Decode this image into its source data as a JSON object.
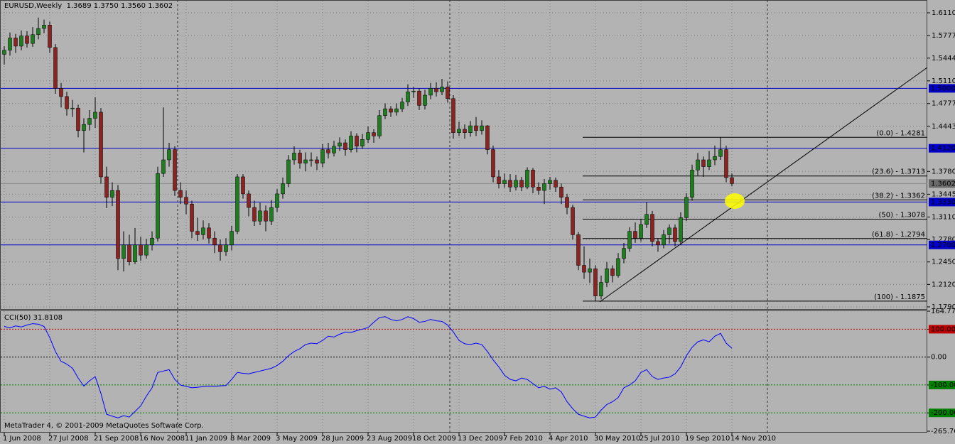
{
  "chart_data": [
    {
      "type": "candlestick",
      "title": "EURUSD,Weekly",
      "quote_labels": [
        "1.3689",
        "1.3750",
        "1.3560",
        "1.3602"
      ],
      "categories": [
        "1 Jun 2008",
        null,
        null,
        null,
        null,
        null,
        null,
        null,
        "27 Jul 2008",
        null,
        null,
        null,
        null,
        null,
        null,
        null,
        "21 Sep 2008",
        null,
        null,
        null,
        null,
        null,
        null,
        null,
        "16 Nov 2008",
        null,
        null,
        null,
        null,
        null,
        null,
        null,
        "11 Jan 2009",
        null,
        null,
        null,
        null,
        null,
        null,
        null,
        "8 Mar 2009",
        null,
        null,
        null,
        null,
        null,
        null,
        null,
        "3 May 2009",
        null,
        null,
        null,
        null,
        null,
        null,
        null,
        "28 Jun 2009",
        null,
        null,
        null,
        null,
        null,
        null,
        null,
        "23 Aug 2009",
        null,
        null,
        null,
        null,
        null,
        null,
        null,
        "18 Oct 2009",
        null,
        null,
        null,
        null,
        null,
        null,
        null,
        "13 Dec 2009",
        null,
        null,
        null,
        null,
        null,
        null,
        null,
        "7 Feb 2010",
        null,
        null,
        null,
        null,
        null,
        null,
        null,
        "4 Apr 2010",
        null,
        null,
        null,
        null,
        null,
        null,
        null,
        "30 May 2010",
        null,
        null,
        null,
        null,
        null,
        null,
        null,
        "25 Jul 2010",
        null,
        null,
        null,
        null,
        null,
        null,
        null,
        "19 Sep 2010",
        null,
        null,
        null,
        null,
        null,
        null,
        null,
        "14 Nov 2010"
      ],
      "ohlc": [
        [
          1.55,
          1.562,
          1.535,
          1.556
        ],
        [
          1.556,
          1.582,
          1.548,
          1.574
        ],
        [
          1.574,
          1.58,
          1.552,
          1.562
        ],
        [
          1.562,
          1.585,
          1.556,
          1.577
        ],
        [
          1.577,
          1.584,
          1.56,
          1.566
        ],
        [
          1.566,
          1.59,
          1.561,
          1.579
        ],
        [
          1.579,
          1.604,
          1.572,
          1.588
        ],
        [
          1.588,
          1.601,
          1.581,
          1.593
        ],
        [
          1.593,
          1.598,
          1.552,
          1.56
        ],
        [
          1.56,
          1.565,
          1.492,
          1.5
        ],
        [
          1.5,
          1.508,
          1.472,
          1.488
        ],
        [
          1.488,
          1.495,
          1.46,
          1.47
        ],
        [
          1.47,
          1.483,
          1.458,
          1.471
        ],
        [
          1.471,
          1.476,
          1.428,
          1.438
        ],
        [
          1.438,
          1.456,
          1.406,
          1.447
        ],
        [
          1.447,
          1.468,
          1.438,
          1.456
        ],
        [
          1.456,
          1.487,
          1.442,
          1.465
        ],
        [
          1.465,
          1.471,
          1.36,
          1.37
        ],
        [
          1.37,
          1.385,
          1.324,
          1.34
        ],
        [
          1.34,
          1.362,
          1.327,
          1.35
        ],
        [
          1.35,
          1.358,
          1.233,
          1.25
        ],
        [
          1.25,
          1.29,
          1.231,
          1.27
        ],
        [
          1.27,
          1.285,
          1.24,
          1.245
        ],
        [
          1.245,
          1.295,
          1.242,
          1.27
        ],
        [
          1.27,
          1.282,
          1.247,
          1.255
        ],
        [
          1.255,
          1.279,
          1.25,
          1.27
        ],
        [
          1.27,
          1.29,
          1.262,
          1.28
        ],
        [
          1.28,
          1.385,
          1.275,
          1.375
        ],
        [
          1.375,
          1.472,
          1.37,
          1.395
        ],
        [
          1.395,
          1.42,
          1.385,
          1.41
        ],
        [
          1.41,
          1.415,
          1.342,
          1.35
        ],
        [
          1.35,
          1.362,
          1.33,
          1.34
        ],
        [
          1.34,
          1.35,
          1.315,
          1.33
        ],
        [
          1.33,
          1.335,
          1.28,
          1.29
        ],
        [
          1.29,
          1.31,
          1.276,
          1.285
        ],
        [
          1.285,
          1.306,
          1.278,
          1.295
        ],
        [
          1.295,
          1.302,
          1.272,
          1.28
        ],
        [
          1.28,
          1.29,
          1.258,
          1.27
        ],
        [
          1.27,
          1.278,
          1.247,
          1.26
        ],
        [
          1.26,
          1.28,
          1.254,
          1.27
        ],
        [
          1.27,
          1.298,
          1.262,
          1.29
        ],
        [
          1.29,
          1.374,
          1.286,
          1.37
        ],
        [
          1.37,
          1.374,
          1.338,
          1.345
        ],
        [
          1.345,
          1.35,
          1.312,
          1.325
        ],
        [
          1.325,
          1.335,
          1.298,
          1.305
        ],
        [
          1.305,
          1.332,
          1.299,
          1.32
        ],
        [
          1.32,
          1.328,
          1.29,
          1.305
        ],
        [
          1.305,
          1.336,
          1.299,
          1.325
        ],
        [
          1.325,
          1.352,
          1.318,
          1.345
        ],
        [
          1.345,
          1.369,
          1.338,
          1.36
        ],
        [
          1.36,
          1.402,
          1.355,
          1.395
        ],
        [
          1.395,
          1.415,
          1.388,
          1.405
        ],
        [
          1.405,
          1.41,
          1.382,
          1.39
        ],
        [
          1.39,
          1.406,
          1.378,
          1.395
        ],
        [
          1.395,
          1.406,
          1.385,
          1.395
        ],
        [
          1.395,
          1.4,
          1.38,
          1.39
        ],
        [
          1.39,
          1.418,
          1.384,
          1.41
        ],
        [
          1.41,
          1.42,
          1.397,
          1.405
        ],
        [
          1.405,
          1.423,
          1.4,
          1.415
        ],
        [
          1.415,
          1.428,
          1.408,
          1.42
        ],
        [
          1.42,
          1.425,
          1.401,
          1.41
        ],
        [
          1.41,
          1.437,
          1.406,
          1.43
        ],
        [
          1.43,
          1.434,
          1.406,
          1.415
        ],
        [
          1.415,
          1.433,
          1.411,
          1.425
        ],
        [
          1.425,
          1.444,
          1.42,
          1.435
        ],
        [
          1.435,
          1.44,
          1.42,
          1.43
        ],
        [
          1.43,
          1.468,
          1.426,
          1.46
        ],
        [
          1.46,
          1.478,
          1.455,
          1.47
        ],
        [
          1.47,
          1.474,
          1.458,
          1.465
        ],
        [
          1.465,
          1.478,
          1.46,
          1.47
        ],
        [
          1.47,
          1.486,
          1.465,
          1.48
        ],
        [
          1.48,
          1.506,
          1.474,
          1.495
        ],
        [
          1.495,
          1.502,
          1.486,
          1.496
        ],
        [
          1.496,
          1.5,
          1.468,
          1.475
        ],
        [
          1.475,
          1.498,
          1.469,
          1.49
        ],
        [
          1.49,
          1.508,
          1.484,
          1.5
        ],
        [
          1.5,
          1.509,
          1.488,
          1.495
        ],
        [
          1.495,
          1.514,
          1.49,
          1.502
        ],
        [
          1.502,
          1.51,
          1.479,
          1.485
        ],
        [
          1.485,
          1.49,
          1.426,
          1.435
        ],
        [
          1.435,
          1.451,
          1.43,
          1.44
        ],
        [
          1.44,
          1.447,
          1.426,
          1.435
        ],
        [
          1.435,
          1.452,
          1.429,
          1.445
        ],
        [
          1.445,
          1.458,
          1.43,
          1.438
        ],
        [
          1.438,
          1.453,
          1.432,
          1.445
        ],
        [
          1.445,
          1.446,
          1.403,
          1.41
        ],
        [
          1.41,
          1.416,
          1.362,
          1.37
        ],
        [
          1.37,
          1.38,
          1.353,
          1.36
        ],
        [
          1.36,
          1.375,
          1.354,
          1.365
        ],
        [
          1.365,
          1.374,
          1.348,
          1.355
        ],
        [
          1.355,
          1.373,
          1.35,
          1.365
        ],
        [
          1.365,
          1.37,
          1.349,
          1.355
        ],
        [
          1.355,
          1.384,
          1.352,
          1.38
        ],
        [
          1.38,
          1.383,
          1.346,
          1.355
        ],
        [
          1.355,
          1.362,
          1.344,
          1.35
        ],
        [
          1.35,
          1.367,
          1.33,
          1.36
        ],
        [
          1.36,
          1.37,
          1.351,
          1.365
        ],
        [
          1.365,
          1.369,
          1.348,
          1.355
        ],
        [
          1.355,
          1.36,
          1.33,
          1.34
        ],
        [
          1.34,
          1.345,
          1.315,
          1.325
        ],
        [
          1.325,
          1.329,
          1.278,
          1.285
        ],
        [
          1.285,
          1.289,
          1.233,
          1.24
        ],
        [
          1.24,
          1.268,
          1.22,
          1.23
        ],
        [
          1.23,
          1.25,
          1.214,
          1.235
        ],
        [
          1.235,
          1.24,
          1.1875,
          1.195
        ],
        [
          1.195,
          1.225,
          1.19,
          1.215
        ],
        [
          1.215,
          1.245,
          1.208,
          1.235
        ],
        [
          1.235,
          1.24,
          1.215,
          1.225
        ],
        [
          1.225,
          1.258,
          1.222,
          1.25
        ],
        [
          1.25,
          1.273,
          1.243,
          1.265
        ],
        [
          1.265,
          1.296,
          1.26,
          1.29
        ],
        [
          1.29,
          1.303,
          1.273,
          1.28
        ],
        [
          1.28,
          1.308,
          1.275,
          1.3
        ],
        [
          1.3,
          1.333,
          1.295,
          1.315
        ],
        [
          1.315,
          1.32,
          1.268,
          1.275
        ],
        [
          1.275,
          1.28,
          1.26,
          1.27
        ],
        [
          1.27,
          1.292,
          1.265,
          1.285
        ],
        [
          1.285,
          1.3,
          1.272,
          1.295
        ],
        [
          1.295,
          1.3,
          1.268,
          1.275
        ],
        [
          1.275,
          1.318,
          1.27,
          1.31
        ],
        [
          1.31,
          1.346,
          1.305,
          1.34
        ],
        [
          1.34,
          1.388,
          1.335,
          1.38
        ],
        [
          1.38,
          1.405,
          1.372,
          1.395
        ],
        [
          1.395,
          1.4,
          1.37,
          1.385
        ],
        [
          1.385,
          1.408,
          1.38,
          1.395
        ],
        [
          1.395,
          1.416,
          1.387,
          1.4
        ],
        [
          1.4,
          1.4281,
          1.395,
          1.41
        ],
        [
          1.41,
          1.416,
          1.362,
          1.3689
        ],
        [
          1.3689,
          1.375,
          1.356,
          1.3602
        ]
      ],
      "up_color": "#1e7d1e",
      "down_color": "#8c2323",
      "ylim": [
        1.1748,
        1.6298
      ],
      "yticks": [
        {
          "value": 1.611,
          "label": "1.6110"
        },
        1.5777,
        1.5444,
        {
          "value": 1.511,
          "label": "1.5110"
        },
        1.4777,
        1.4443,
        {
          "value": 1.378,
          "label": "1.3780"
        },
        1.3445,
        {
          "value": 1.311,
          "label": "1.3110"
        },
        {
          "value": 1.278,
          "label": "1.2780"
        },
        {
          "value": 1.245,
          "label": "1.2450"
        },
        {
          "value": 1.212,
          "label": "1.2120"
        },
        {
          "value": 1.179,
          "label": "1.1790"
        }
      ],
      "hlines": [
        {
          "value": 1.5,
          "label": "1.5000"
        },
        {
          "value": 1.412,
          "label": "1.4120"
        },
        {
          "value": 1.333,
          "label": "1.3330"
        },
        {
          "value": 1.27,
          "label": "1.2700"
        }
      ],
      "hline_color": "#0000c8",
      "fib_levels": [
        {
          "value": 1.4281,
          "label": "(0.0) - 1.4281"
        },
        {
          "value": 1.3713,
          "label": "(23.6) - 1.3713"
        },
        {
          "value": 1.3362,
          "label": "(38.2) - 1.3362"
        },
        {
          "value": 1.3078,
          "label": "(50) - 1.3078"
        },
        {
          "value": 1.2794,
          "label": "(61.8) - 1.2794"
        },
        {
          "value": 1.1875,
          "label": "(100) - 1.1875"
        }
      ],
      "grid": true
    },
    {
      "type": "line",
      "series": [
        {
          "name": "CCI(50)",
          "color": "#0000ff",
          "values": [
            110,
            105,
            112,
            108,
            115,
            120,
            118,
            110,
            70,
            20,
            -15,
            -25,
            -40,
            -75,
            -104,
            -85,
            -70,
            -130,
            -205,
            -212,
            -218,
            -210,
            -215,
            -195,
            -175,
            -140,
            -110,
            -55,
            -50,
            -45,
            -80,
            -100,
            -105,
            -110,
            -108,
            -106,
            -104,
            -105,
            -103,
            -102,
            -80,
            -55,
            -58,
            -60,
            -55,
            -50,
            -45,
            -40,
            -30,
            -15,
            5,
            20,
            30,
            45,
            50,
            48,
            60,
            75,
            72,
            82,
            90,
            88,
            95,
            100,
            106,
            125,
            142,
            145,
            135,
            130,
            135,
            145,
            138,
            125,
            128,
            135,
            130,
            128,
            115,
            90,
            60,
            48,
            45,
            50,
            45,
            20,
            -10,
            -35,
            -65,
            -80,
            -85,
            -75,
            -80,
            -95,
            -110,
            -105,
            -115,
            -110,
            -125,
            -160,
            -185,
            -205,
            -212,
            -218,
            -215,
            -190,
            -170,
            -160,
            -145,
            -110,
            -100,
            -85,
            -55,
            -45,
            -70,
            -80,
            -75,
            -72,
            -60,
            -35,
            5,
            35,
            55,
            62,
            55,
            75,
            85,
            50,
            31.8108
          ]
        }
      ],
      "ylim": [
        -265.763,
        164.776
      ],
      "yticks": [
        164.776,
        {
          "value": 100,
          "label": "100.000",
          "level_color": "#c00000",
          "box": true
        },
        {
          "value": 0,
          "label": "0.00",
          "level_color": "#000000"
        },
        {
          "value": -100,
          "label": "-100.000",
          "level_color": "#008000",
          "box": true
        },
        {
          "value": -200,
          "label": "-200.000",
          "level_color": "#008000",
          "box": true
        },
        -265.763
      ]
    }
  ],
  "footer": "MetaTrader 4, © 2001-2009 MetaQuotes Software Corp."
}
